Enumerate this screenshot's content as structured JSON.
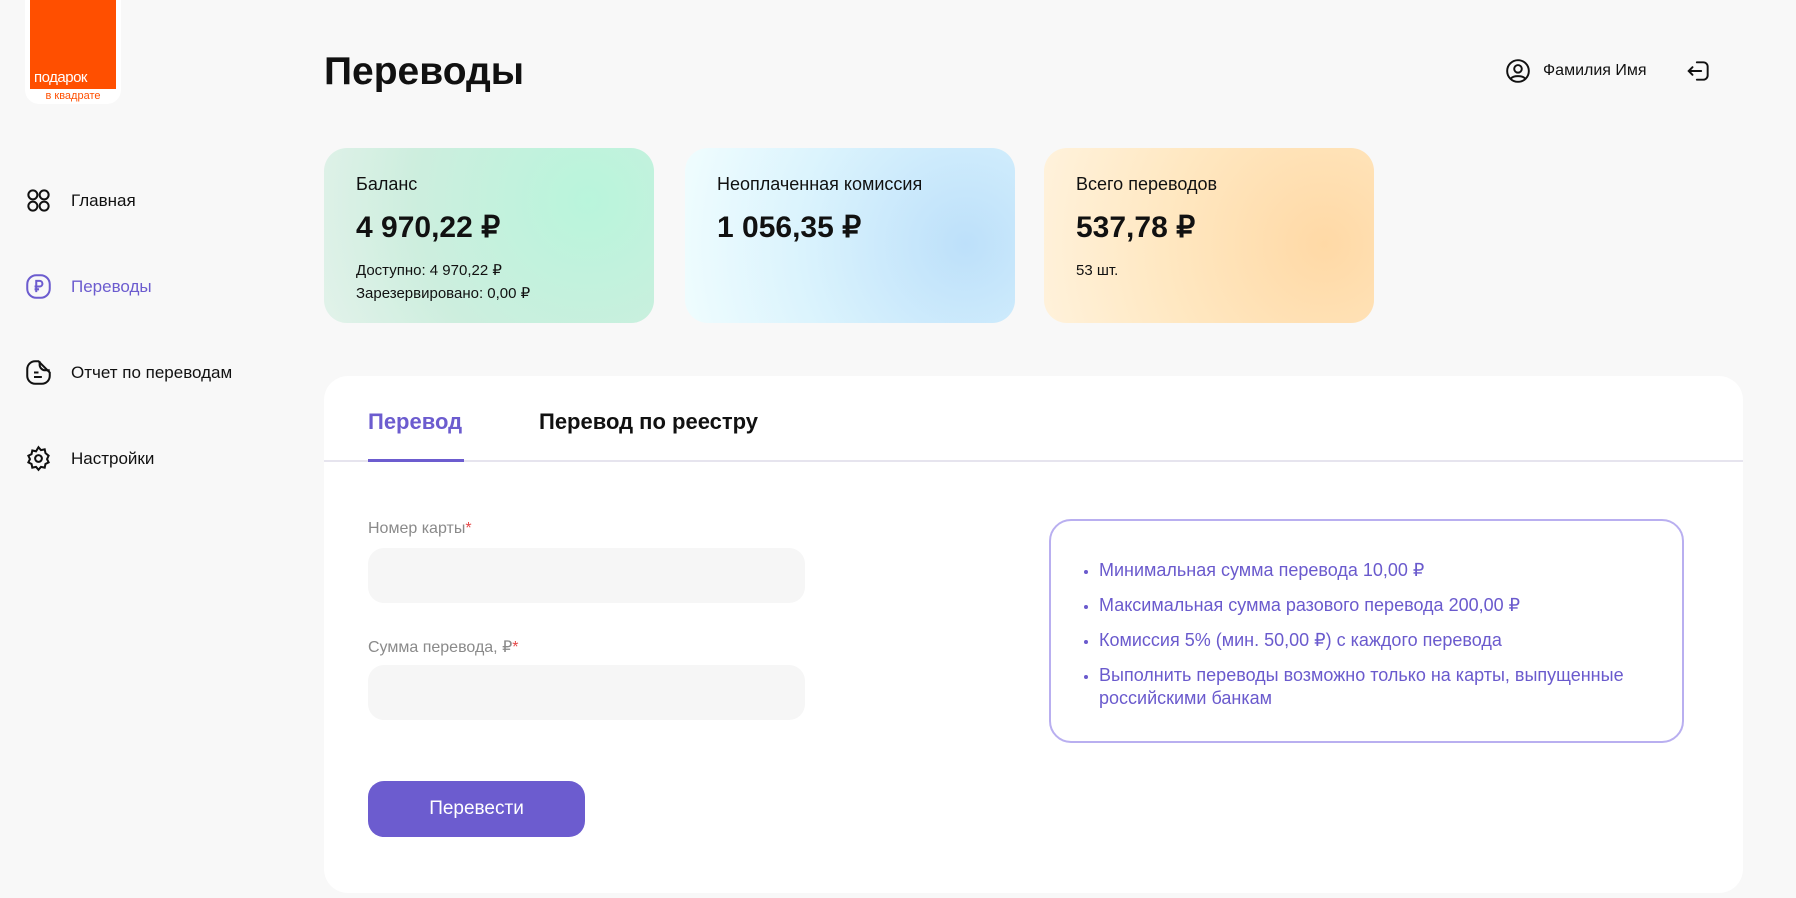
{
  "logo": {
    "line1": "подарок",
    "line2": "в квадрате"
  },
  "sidebar": {
    "items": [
      {
        "label": "Главная",
        "icon": "grid-circles-icon",
        "active": false
      },
      {
        "label": "Переводы",
        "icon": "ruble-icon",
        "active": true
      },
      {
        "label": "Отчет по переводам",
        "icon": "document-icon",
        "active": false
      },
      {
        "label": "Настройки",
        "icon": "gear-icon",
        "active": false
      }
    ]
  },
  "header": {
    "title": "Переводы",
    "user_name": "Фамилия Имя"
  },
  "cards": [
    {
      "label": "Баланс",
      "value": "4 970,22 ₽",
      "sub1": "Доступно: 4 970,22 ₽",
      "sub2": "Зарезервировано: 0,00 ₽"
    },
    {
      "label": "Неоплаченная комиссия",
      "value": "1 056,35 ₽"
    },
    {
      "label": "Всего переводов",
      "value": "537,78 ₽",
      "sub1": "53 шт."
    }
  ],
  "tabs": [
    {
      "label": "Перевод",
      "active": true
    },
    {
      "label": "Перевод по реестру",
      "active": false
    }
  ],
  "form": {
    "card_label": "Номер карты",
    "card_value": "",
    "amount_label": "Сумма перевода, ₽",
    "amount_value": "",
    "required_mark": "*",
    "submit_label": "Перевести"
  },
  "info": [
    "Минимальная сумма перевода 10,00 ₽",
    "Максимальная сумма разового перевода 200,00 ₽",
    "Комиссия 5% (мин. 50,00 ₽) с каждого перевода",
    "Выполнить переводы возможно только на карты, выпущенные российскими банкам"
  ],
  "colors": {
    "accent": "#6c5ccf",
    "brand": "#ff4f00",
    "required": "#e54848"
  }
}
